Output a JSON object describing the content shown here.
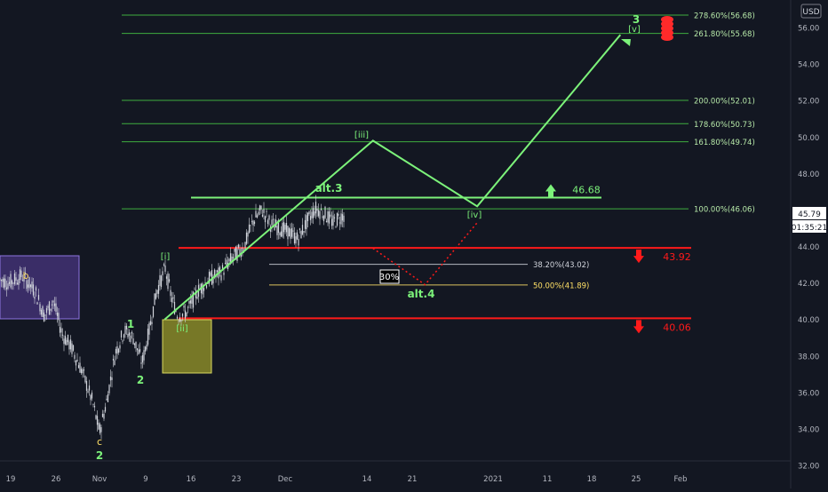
{
  "currency_label": "USD",
  "last_price": "45.79",
  "countdown": "01:35:21",
  "colors": {
    "background": "#131722",
    "candle": "#d1d4dc",
    "wave_green": "#7cf27a",
    "wave_label_green": "#7cf27a",
    "yellow_label": "#ffe066",
    "fib_line": "#3fae3f",
    "fib_text": "#b6e8a8",
    "support_red": "#ff1a1a",
    "axis_text": "#b2b5be",
    "purple_box": "#5b3fa0",
    "olive_box": "#9a9a2a"
  },
  "chart_data": {
    "type": "line",
    "y_axis": {
      "ticks": [
        "56.00",
        "54.00",
        "52.00",
        "50.00",
        "48.00",
        "46.00",
        "44.00",
        "42.00",
        "40.00",
        "38.00",
        "36.00",
        "34.00",
        "32.00"
      ],
      "range": [
        32,
        57.5
      ]
    },
    "x_axis": {
      "ticks": [
        "19",
        "26",
        "Nov",
        "9",
        "16",
        "23",
        "Dec",
        "14",
        "21",
        "2021",
        "11",
        "18",
        "25",
        "Feb"
      ]
    },
    "fib_levels": [
      {
        "label": "278.60%(56.68)",
        "value": 56.68
      },
      {
        "label": "261.80%(55.68)",
        "value": 55.68
      },
      {
        "label": "200.00%(52.01)",
        "value": 52.01
      },
      {
        "label": "178.60%(50.73)",
        "value": 50.73
      },
      {
        "label": "161.80%(49.74)",
        "value": 49.74
      },
      {
        "label": "100.00%(46.06)",
        "value": 46.06
      }
    ],
    "retracements": [
      {
        "label": "38.20%(43.02)",
        "value": 43.02,
        "color": "#d1d4dc"
      },
      {
        "label": "50.00%(41.89)",
        "value": 41.89,
        "color": "#ffe066"
      }
    ],
    "levels": [
      {
        "label": "46.68",
        "value": 46.68,
        "color": "#7cf27a",
        "arrow": "up"
      },
      {
        "label": "43.92",
        "value": 43.92,
        "color": "#ff1a1a",
        "arrow": "down"
      },
      {
        "label": "40.06",
        "value": 40.06,
        "color": "#ff1a1a",
        "arrow": "down"
      }
    ],
    "wave_path": [
      {
        "x": "Nov 12",
        "y": 40.0
      },
      {
        "x": "Dec 14",
        "y": 49.8
      },
      {
        "x": "Dec 30",
        "y": 46.2
      },
      {
        "x": "Jan 21",
        "y": 55.6
      }
    ],
    "alt_path": [
      {
        "x": "Dec 14",
        "y": 43.9
      },
      {
        "x": "Dec 22",
        "y": 41.9
      },
      {
        "x": "Dec 30",
        "y": 45.3
      }
    ],
    "labels": {
      "b": "b",
      "c": "c",
      "c_wave": "2",
      "w1": "1",
      "w2": "2",
      "wi": "[i]",
      "wii": "[ii]",
      "wiii": "[iii]",
      "wiv": "[iv]",
      "wv": "[v]",
      "w3": "3",
      "alt3": "alt.3",
      "alt4": "alt.4",
      "pct_box": "30%"
    }
  }
}
